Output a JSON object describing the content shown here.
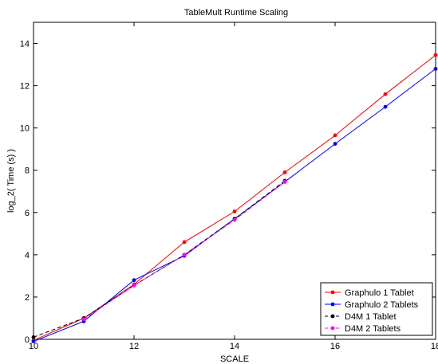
{
  "chart_data": {
    "type": "line",
    "title": "TableMult Runtime Scaling",
    "xlabel": "SCALE",
    "ylabel": "log_2( Time (s) )",
    "xlim": [
      10,
      18
    ],
    "ylim": [
      0,
      15
    ],
    "xticks": [
      10,
      12,
      14,
      16,
      18
    ],
    "yticks": [
      0,
      2,
      4,
      6,
      8,
      10,
      12,
      14
    ],
    "grid": false,
    "legend_position": "bottom-right",
    "series": [
      {
        "name": "Graphulo 1 Tablet",
        "color": "#ff0000",
        "line_style": "solid",
        "marker": "dot",
        "x": [
          10,
          11,
          12,
          13,
          14,
          15,
          16,
          17,
          18
        ],
        "y": [
          -0.05,
          1.0,
          2.6,
          4.6,
          6.05,
          7.9,
          9.65,
          11.6,
          13.45
        ]
      },
      {
        "name": "Graphulo 2 Tablets",
        "color": "#0000ff",
        "line_style": "solid",
        "marker": "dot",
        "x": [
          10,
          11,
          12,
          13,
          14,
          15,
          16,
          17,
          18
        ],
        "y": [
          -0.1,
          0.85,
          2.8,
          3.95,
          5.7,
          7.45,
          9.25,
          11.0,
          12.8
        ]
      },
      {
        "name": "D4M 1 Tablet",
        "color": "#000000",
        "line_style": "dashed",
        "marker": "dot",
        "x": [
          10,
          11,
          12,
          13,
          14,
          15
        ],
        "y": [
          0.1,
          1.0,
          2.55,
          4.0,
          5.7,
          7.5
        ]
      },
      {
        "name": "D4M 2 Tablets",
        "color": "#ff00ff",
        "line_style": "dashed",
        "marker": "dot",
        "x": [
          11,
          12,
          13,
          14,
          15
        ],
        "y": [
          0.95,
          2.55,
          4.0,
          5.65,
          7.45
        ]
      }
    ]
  }
}
